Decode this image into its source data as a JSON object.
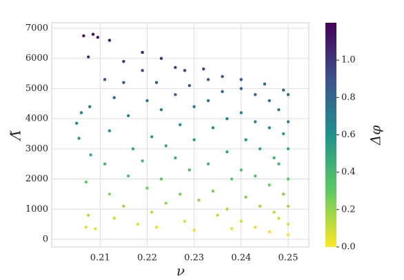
{
  "chart_data": {
    "type": "scatter",
    "x_label": "ν",
    "y_label": "Λ̃",
    "x": [
      0.2065,
      0.2085,
      0.2095,
      0.2075,
      0.212,
      0.215,
      0.219,
      0.223,
      0.228,
      0.232,
      0.236,
      0.24,
      0.245,
      0.249,
      0.205,
      0.206,
      0.2078,
      0.2055,
      0.208,
      0.207,
      0.2075,
      0.207,
      0.209,
      0.211,
      0.213,
      0.212,
      0.211,
      0.212,
      0.213,
      0.215,
      0.216,
      0.217,
      0.216,
      0.215,
      0.218,
      0.219,
      0.22,
      0.221,
      0.219,
      0.22,
      0.221,
      0.222,
      0.223,
      0.224,
      0.223,
      0.224,
      0.222,
      0.226,
      0.226,
      0.227,
      0.226,
      0.227,
      0.228,
      0.229,
      0.23,
      0.23,
      0.229,
      0.231,
      0.23,
      0.233,
      0.233,
      0.234,
      0.233,
      0.234,
      0.235,
      0.236,
      0.237,
      0.237,
      0.238,
      0.237,
      0.238,
      0.24,
      0.24,
      0.241,
      0.24,
      0.241,
      0.24,
      0.243,
      0.243,
      0.244,
      0.243,
      0.244,
      0.243,
      0.246,
      0.246,
      0.247,
      0.246,
      0.247,
      0.246,
      0.248,
      0.249,
      0.248,
      0.249,
      0.248,
      0.25,
      0.25,
      0.25,
      0.25,
      0.25,
      0.25,
      0.25
    ],
    "values": [
      6750,
      6800,
      6700,
      6050,
      6600,
      5900,
      6200,
      6000,
      5600,
      5650,
      5400,
      5300,
      5150,
      4950,
      3850,
      4200,
      4400,
      3350,
      2800,
      1900,
      800,
      400,
      350,
      5300,
      4700,
      3600,
      2500,
      1500,
      700,
      5200,
      4100,
      3000,
      2100,
      1100,
      500,
      5600,
      4600,
      3400,
      2600,
      1700,
      900,
      5200,
      4300,
      3100,
      2000,
      1200,
      400,
      5700,
      4800,
      3800,
      2700,
      1500,
      600,
      5100,
      4400,
      3300,
      2300,
      1300,
      300,
      5300,
      4600,
      3700,
      2500,
      1600,
      800,
      4900,
      4000,
      2900,
      2000,
      1000,
      350,
      5000,
      4200,
      3300,
      2300,
      1400,
      600,
      4800,
      3900,
      3000,
      2100,
      1100,
      400,
      4600,
      3700,
      2700,
      1800,
      900,
      250,
      4300,
      3500,
      2500,
      1500,
      700,
      4800,
      3900,
      3000,
      2000,
      1100,
      500,
      150
    ],
    "color_values": [
      1.12,
      1.15,
      1.1,
      1.05,
      1.12,
      1.0,
      1.08,
      1.02,
      0.95,
      0.93,
      0.88,
      0.86,
      0.82,
      0.78,
      0.62,
      0.68,
      0.7,
      0.55,
      0.46,
      0.3,
      0.12,
      0.05,
      0.04,
      0.9,
      0.8,
      0.6,
      0.4,
      0.22,
      0.1,
      0.88,
      0.68,
      0.5,
      0.33,
      0.17,
      0.06,
      0.95,
      0.76,
      0.56,
      0.42,
      0.27,
      0.13,
      0.87,
      0.7,
      0.5,
      0.32,
      0.18,
      0.05,
      0.97,
      0.8,
      0.63,
      0.45,
      0.24,
      0.08,
      0.86,
      0.72,
      0.54,
      0.37,
      0.2,
      0.04,
      0.89,
      0.75,
      0.61,
      0.41,
      0.25,
      0.11,
      0.82,
      0.66,
      0.48,
      0.32,
      0.15,
      0.04,
      0.83,
      0.69,
      0.55,
      0.37,
      0.22,
      0.08,
      0.8,
      0.64,
      0.5,
      0.34,
      0.17,
      0.05,
      0.76,
      0.6,
      0.44,
      0.29,
      0.13,
      0.03,
      0.7,
      0.57,
      0.4,
      0.23,
      0.09,
      0.78,
      0.63,
      0.49,
      0.31,
      0.16,
      0.06,
      0.02
    ],
    "xlim": [
      0.1997,
      0.2544
    ],
    "xticks": [
      0.21,
      0.22,
      0.23,
      0.24,
      0.25
    ],
    "ylim": [
      -252,
      7183
    ],
    "yticks": [
      0,
      1000,
      2000,
      3000,
      4000,
      5000,
      6000,
      7000
    ],
    "grid": true,
    "colorbar": {
      "label": "Δφ",
      "colormap": "viridis_r",
      "lim": [
        0,
        1.2
      ],
      "ticks": [
        {
          "value": 0,
          "label": "0.0"
        },
        0.2,
        0.4,
        0.6,
        0.8,
        {
          "value": 1,
          "label": "1.0"
        }
      ]
    }
  }
}
